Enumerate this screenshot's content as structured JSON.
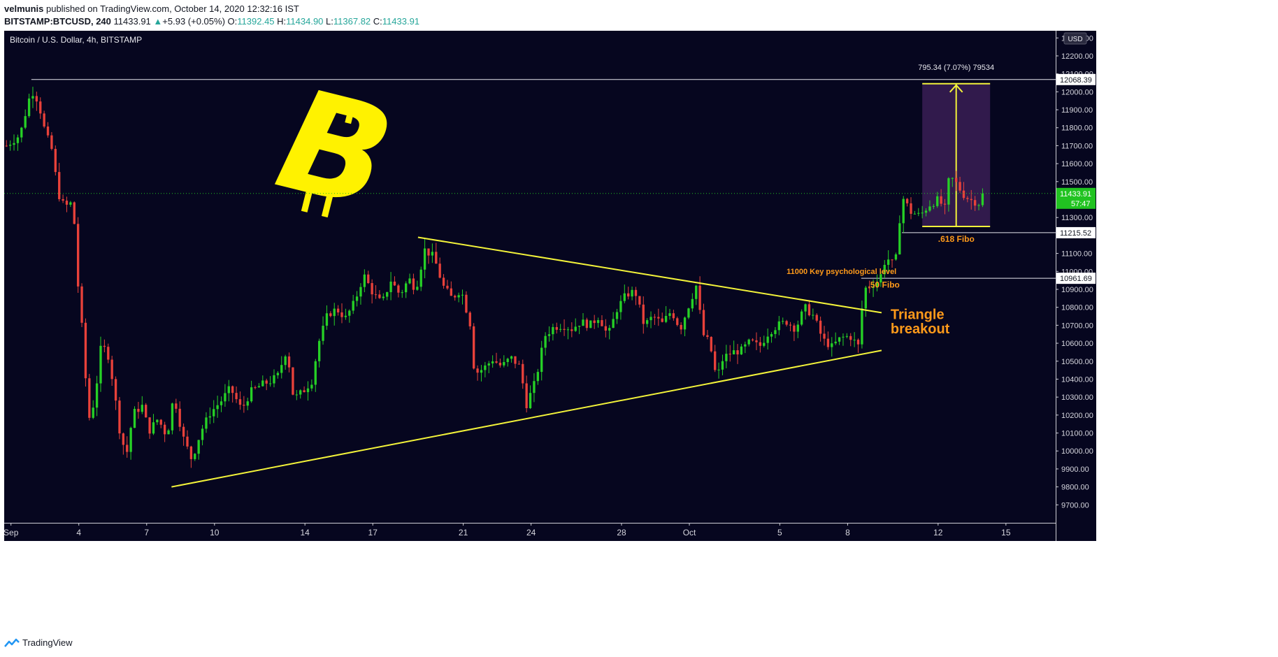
{
  "header": {
    "author": "velmunis",
    "published_text": "published on TradingView.com, October 14, 2020 12:32:16 IST",
    "symbol": "BITSTAMP:BTCUSD, 240",
    "last": "11433.91",
    "change_arrow": "▲",
    "change": "+5.93 (+0.05%)",
    "o_label": "O:",
    "o_val": "11392.45",
    "h_label": "H:",
    "h_val": "11434.90",
    "l_label": "L:",
    "l_val": "11367.82",
    "c_label": "C:",
    "c_val": "11433.91"
  },
  "footer": {
    "brand": "TradingView"
  },
  "colors": {
    "background": "#06061f",
    "up": "#26d026",
    "down": "#e8413a",
    "trendline": "#f3f33a",
    "annotation": "#ff9a1a",
    "price_badge": "#21c321"
  },
  "chart_data": {
    "type": "candlestick",
    "title": "Bitcoin / U.S. Dollar, 4h, BITSTAMP",
    "currency_button": "USD",
    "y_ticks": [
      "9700.00",
      "9800.00",
      "9900.00",
      "10000.00",
      "10100.00",
      "10200.00",
      "10300.00",
      "10400.00",
      "10500.00",
      "10600.00",
      "10700.00",
      "10800.00",
      "10900.00",
      "11000.00",
      "11100.00",
      "11200.00",
      "11300.00",
      "11400.00",
      "11500.00",
      "11600.00",
      "11700.00",
      "11800.00",
      "11900.00",
      "12000.00",
      "12100.00",
      "12200.00",
      "12300.00"
    ],
    "ylim": [
      9600,
      12340
    ],
    "x_ticks": [
      {
        "label": "Sep",
        "day": 1
      },
      {
        "label": "4",
        "day": 4
      },
      {
        "label": "7",
        "day": 7
      },
      {
        "label": "10",
        "day": 10
      },
      {
        "label": "14",
        "day": 14
      },
      {
        "label": "17",
        "day": 17
      },
      {
        "label": "21",
        "day": 21
      },
      {
        "label": "24",
        "day": 24
      },
      {
        "label": "28",
        "day": 28
      },
      {
        "label": "Oct",
        "day": 31
      },
      {
        "label": "5",
        "day": 35
      },
      {
        "label": "8",
        "day": 38
      },
      {
        "label": "12",
        "day": 42
      },
      {
        "label": "15",
        "day": 45
      }
    ],
    "x_range_days": [
      0.7,
      47.2
    ],
    "anchors": [
      [
        0.8,
        11700
      ],
      [
        1.4,
        11760
      ],
      [
        1.9,
        12010
      ],
      [
        2.2,
        11950
      ],
      [
        2.5,
        11780
      ],
      [
        2.8,
        11680
      ],
      [
        3.1,
        11430
      ],
      [
        3.4,
        11350
      ],
      [
        3.6,
        11400
      ],
      [
        3.9,
        11200
      ],
      [
        4.0,
        10780
      ],
      [
        4.2,
        10650
      ],
      [
        4.4,
        10160
      ],
      [
        4.7,
        10280
      ],
      [
        5.0,
        10600
      ],
      [
        5.3,
        10530
      ],
      [
        5.5,
        10390
      ],
      [
        5.8,
        10120
      ],
      [
        6.1,
        9970
      ],
      [
        6.4,
        10210
      ],
      [
        6.8,
        10250
      ],
      [
        7.1,
        10110
      ],
      [
        7.5,
        10180
      ],
      [
        7.9,
        10080
      ],
      [
        8.2,
        10310
      ],
      [
        8.6,
        10080
      ],
      [
        9.0,
        9950
      ],
      [
        9.4,
        10110
      ],
      [
        9.8,
        10210
      ],
      [
        10.3,
        10280
      ],
      [
        10.7,
        10350
      ],
      [
        11.2,
        10230
      ],
      [
        11.6,
        10330
      ],
      [
        12.1,
        10370
      ],
      [
        12.5,
        10390
      ],
      [
        12.8,
        10420
      ],
      [
        13.2,
        10570
      ],
      [
        13.5,
        10290
      ],
      [
        13.9,
        10330
      ],
      [
        14.3,
        10390
      ],
      [
        14.6,
        10600
      ],
      [
        15.0,
        10760
      ],
      [
        15.4,
        10790
      ],
      [
        15.8,
        10740
      ],
      [
        16.2,
        10830
      ],
      [
        16.6,
        10980
      ],
      [
        17.0,
        10880
      ],
      [
        17.4,
        10820
      ],
      [
        17.8,
        10950
      ],
      [
        18.2,
        10870
      ],
      [
        18.6,
        10960
      ],
      [
        18.9,
        10900
      ],
      [
        19.3,
        11120
      ],
      [
        19.7,
        11080
      ],
      [
        20.1,
        10920
      ],
      [
        20.5,
        10850
      ],
      [
        20.9,
        10900
      ],
      [
        21.3,
        10710
      ],
      [
        21.5,
        10430
      ],
      [
        21.9,
        10460
      ],
      [
        22.3,
        10510
      ],
      [
        22.7,
        10470
      ],
      [
        23.1,
        10520
      ],
      [
        23.5,
        10470
      ],
      [
        23.8,
        10260
      ],
      [
        24.2,
        10390
      ],
      [
        24.6,
        10640
      ],
      [
        25.0,
        10690
      ],
      [
        25.4,
        10700
      ],
      [
        25.8,
        10680
      ],
      [
        26.2,
        10720
      ],
      [
        26.6,
        10700
      ],
      [
        27.0,
        10750
      ],
      [
        27.4,
        10640
      ],
      [
        27.8,
        10790
      ],
      [
        28.2,
        10870
      ],
      [
        28.6,
        10890
      ],
      [
        29.0,
        10700
      ],
      [
        29.4,
        10750
      ],
      [
        29.8,
        10710
      ],
      [
        30.2,
        10780
      ],
      [
        30.6,
        10680
      ],
      [
        31.0,
        10820
      ],
      [
        31.3,
        10920
      ],
      [
        31.6,
        10650
      ],
      [
        31.9,
        10600
      ],
      [
        32.2,
        10400
      ],
      [
        32.5,
        10520
      ],
      [
        32.9,
        10550
      ],
      [
        33.3,
        10560
      ],
      [
        33.7,
        10610
      ],
      [
        34.1,
        10580
      ],
      [
        34.5,
        10660
      ],
      [
        34.9,
        10700
      ],
      [
        35.3,
        10720
      ],
      [
        35.7,
        10680
      ],
      [
        36.1,
        10800
      ],
      [
        36.5,
        10750
      ],
      [
        36.9,
        10620
      ],
      [
        37.3,
        10580
      ],
      [
        37.7,
        10630
      ],
      [
        38.1,
        10640
      ],
      [
        38.5,
        10580
      ],
      [
        38.7,
        10900
      ],
      [
        39.0,
        10920
      ],
      [
        39.4,
        10950
      ],
      [
        39.7,
        11080
      ],
      [
        40.1,
        11030
      ],
      [
        40.4,
        11420
      ],
      [
        40.8,
        11330
      ],
      [
        41.2,
        11310
      ],
      [
        41.6,
        11370
      ],
      [
        42.0,
        11400
      ],
      [
        42.3,
        11350
      ],
      [
        42.5,
        11530
      ],
      [
        42.8,
        11490
      ],
      [
        43.1,
        11430
      ],
      [
        43.4,
        11400
      ],
      [
        43.8,
        11380
      ],
      [
        44.0,
        11433.91
      ]
    ],
    "hlines": [
      {
        "price": 12068.39,
        "label": "12068.39",
        "from_day": 1.9
      },
      {
        "price": 11215.52,
        "label": "11215.52",
        "from_day": 40.4
      },
      {
        "price": 10961.69,
        "label": "10961.69",
        "from_day": 38.6
      }
    ],
    "last_price": {
      "price": 11433.91,
      "label": "11433.91",
      "countdown": "57:47"
    },
    "trendlines": [
      {
        "name": "upper",
        "from": {
          "day": 19.0,
          "price": 11190
        },
        "to": {
          "day": 39.5,
          "price": 10770
        }
      },
      {
        "name": "lower",
        "from": {
          "day": 8.1,
          "price": 9800
        },
        "to": {
          "day": 39.5,
          "price": 10560
        }
      }
    ],
    "measure": {
      "label": "795.34 (7.07%) 79534",
      "day_from": 41.3,
      "day_to": 44.3,
      "price_from": 11250,
      "price_to": 12045,
      "arrow_day": 42.8
    },
    "annotations": [
      {
        "text": "11000 Key psychological level",
        "day": 35.3,
        "price": 10985,
        "size": 11
      },
      {
        "text": ".50 Fibo",
        "day": 38.9,
        "price": 10910,
        "size": 12
      },
      {
        "text": ".618 Fibo",
        "day": 42.0,
        "price": 11165,
        "size": 12
      },
      {
        "text": "Triangle",
        "day": 39.9,
        "price": 10735,
        "size": 20
      },
      {
        "text": "breakout",
        "day": 39.9,
        "price": 10655,
        "size": 20
      }
    ],
    "logo_symbol": "B",
    "grid": false,
    "legend": "none"
  }
}
